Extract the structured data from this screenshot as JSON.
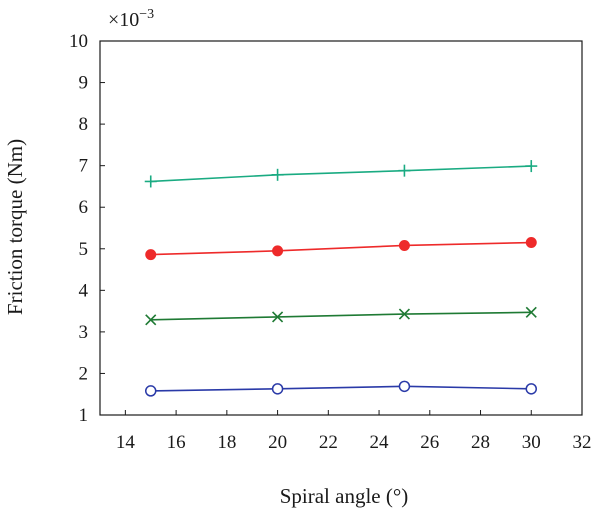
{
  "chart_data": {
    "type": "line",
    "title": "",
    "xlabel": "Spiral angle (°)",
    "ylabel": "Friction torque (Nm)",
    "y_multiplier_label": "×10",
    "y_multiplier_exponent": "−3",
    "xlim": [
      13,
      32
    ],
    "ylim": [
      1,
      10
    ],
    "x_ticks": [
      "14",
      "16",
      "18",
      "20",
      "22",
      "24",
      "26",
      "28",
      "30",
      "32"
    ],
    "y_ticks": [
      "1",
      "2",
      "3",
      "4",
      "5",
      "6",
      "7",
      "8",
      "9",
      "10"
    ],
    "grid": false,
    "legend": "none",
    "series": [
      {
        "x": [
          15,
          20,
          25,
          30
        ],
        "values": [
          6.62,
          6.78,
          6.88,
          6.99
        ],
        "color": "#1aab82",
        "marker": "plus"
      },
      {
        "x": [
          15,
          20,
          25,
          30
        ],
        "values": [
          4.86,
          4.95,
          5.08,
          5.15
        ],
        "color": "#ee2a2a",
        "marker": "filled-circle"
      },
      {
        "x": [
          15,
          20,
          25,
          30
        ],
        "values": [
          3.29,
          3.36,
          3.43,
          3.47
        ],
        "color": "#1f7a34",
        "marker": "cross"
      },
      {
        "x": [
          15,
          20,
          25,
          30
        ],
        "values": [
          1.58,
          1.63,
          1.69,
          1.63
        ],
        "color": "#2a3aa8",
        "marker": "open-circle"
      }
    ]
  }
}
